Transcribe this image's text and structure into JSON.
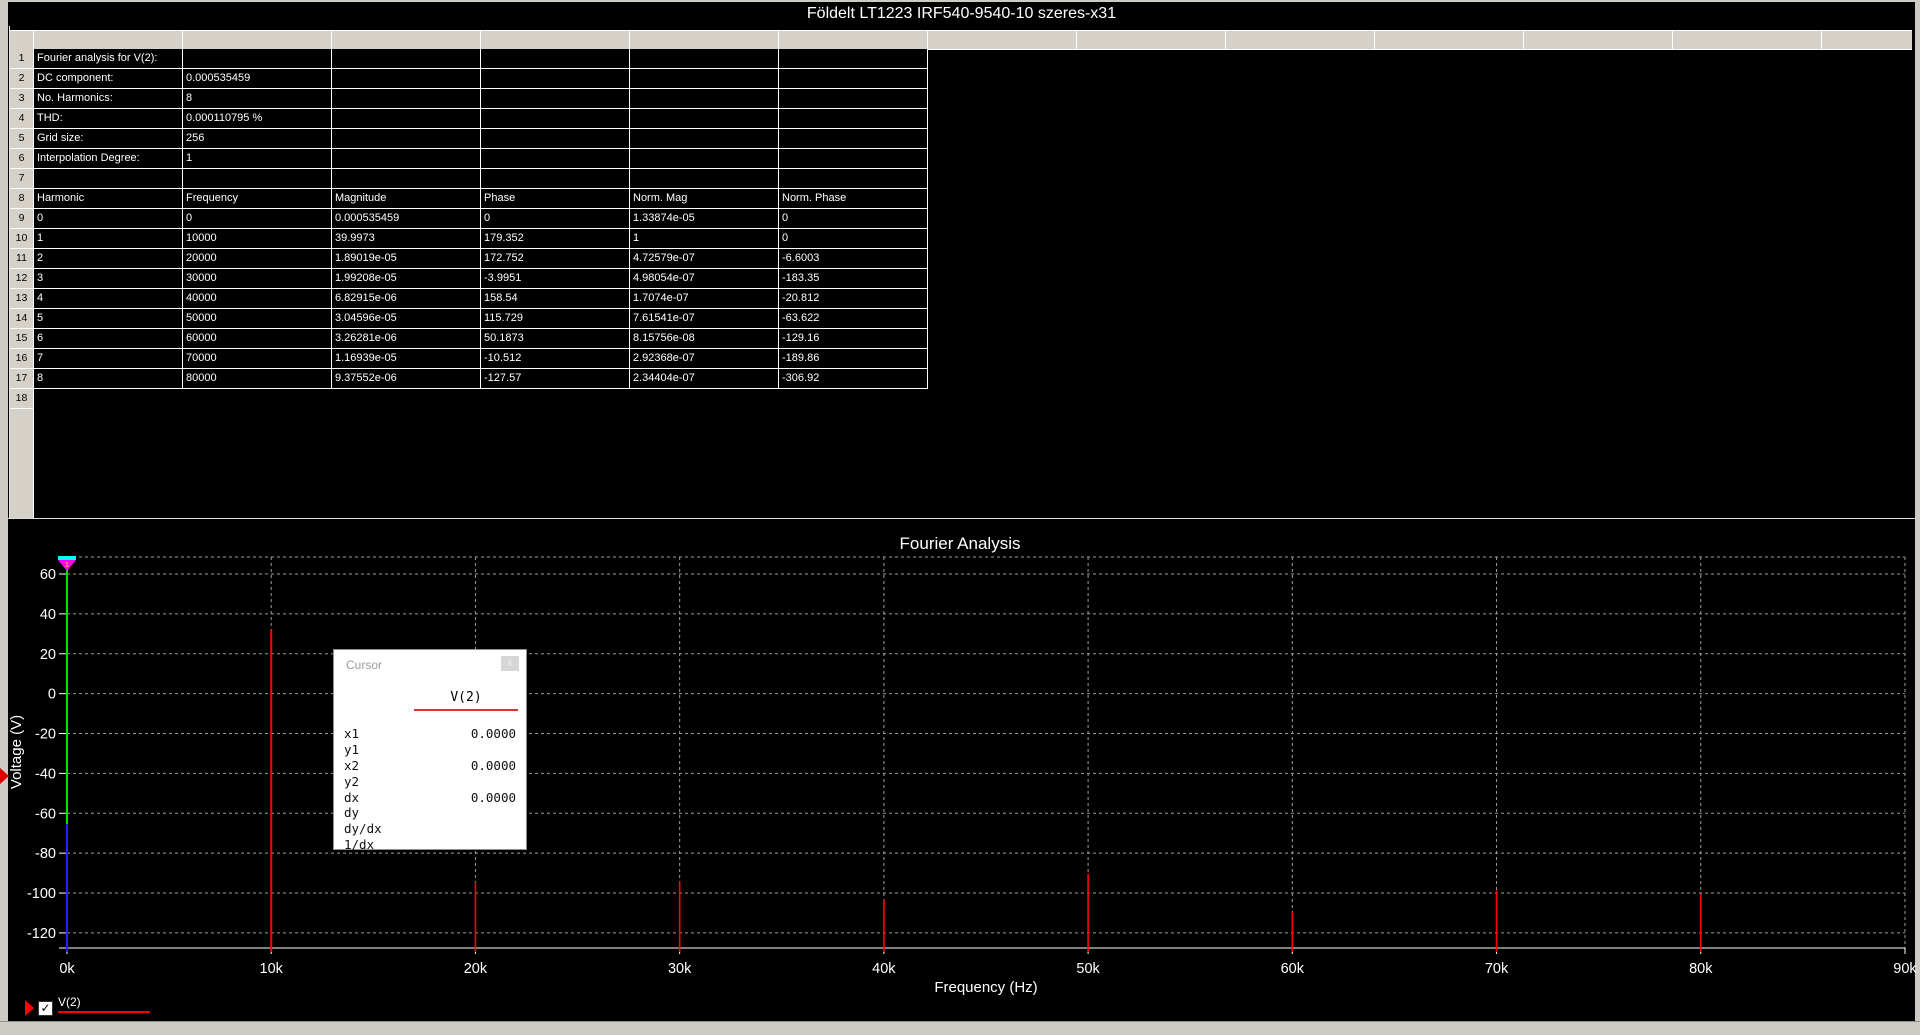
{
  "window": {
    "title": "Földelt LT1223 IRF540-9540-10 szeres-x31"
  },
  "spreadsheet": {
    "row_numbers": [
      "1",
      "2",
      "3",
      "4",
      "5",
      "6",
      "7",
      "8",
      "9",
      "10",
      "11",
      "12",
      "13",
      "14",
      "15",
      "16",
      "17",
      "18"
    ],
    "rows": [
      [
        "Fourier analysis for V(2):",
        "",
        "",
        "",
        "",
        ""
      ],
      [
        "DC component:",
        "0.000535459",
        "",
        "",
        "",
        ""
      ],
      [
        "No. Harmonics:",
        "8",
        "",
        "",
        "",
        ""
      ],
      [
        "THD:",
        "0.000110795 %",
        "",
        "",
        "",
        ""
      ],
      [
        "Grid size:",
        "256",
        "",
        "",
        "",
        ""
      ],
      [
        "Interpolation Degree:",
        "1",
        "",
        "",
        "",
        ""
      ],
      [
        "",
        "",
        "",
        "",
        "",
        ""
      ],
      [
        "Harmonic",
        "Frequency",
        "Magnitude",
        "Phase",
        "Norm. Mag",
        "Norm. Phase"
      ],
      [
        "0",
        "0",
        "0.000535459",
        "0",
        "1.33874e-05",
        "0"
      ],
      [
        "1",
        "10000",
        "39.9973",
        "179.352",
        "1",
        "0"
      ],
      [
        "2",
        "20000",
        "1.89019e-05",
        "172.752",
        "4.72579e-07",
        "-6.6003"
      ],
      [
        "3",
        "30000",
        "1.99208e-05",
        "-3.9951",
        "4.98054e-07",
        "-183.35"
      ],
      [
        "4",
        "40000",
        "6.82915e-06",
        "158.54",
        "1.7074e-07",
        "-20.812"
      ],
      [
        "5",
        "50000",
        "3.04596e-05",
        "115.729",
        "7.61541e-07",
        "-63.622"
      ],
      [
        "6",
        "60000",
        "3.26281e-06",
        "50.1873",
        "8.15756e-08",
        "-129.16"
      ],
      [
        "7",
        "70000",
        "1.16939e-05",
        "-10.512",
        "2.92368e-07",
        "-189.86"
      ],
      [
        "8",
        "80000",
        "9.37552e-06",
        "-127.57",
        "2.34404e-07",
        "-306.92"
      ],
      [
        "",
        "",
        "",
        "",
        "",
        ""
      ]
    ]
  },
  "chart_data": {
    "type": "bar",
    "title": "Fourier Analysis",
    "xlabel": "Frequency (Hz)",
    "ylabel": "Voltage (V)",
    "x_tick_labels": [
      "0k",
      "10k",
      "20k",
      "30k",
      "40k",
      "50k",
      "60k",
      "70k",
      "80k",
      "90k"
    ],
    "x_tick_values": [
      0,
      10000,
      20000,
      30000,
      40000,
      50000,
      60000,
      70000,
      80000,
      90000
    ],
    "y_tick_values": [
      60,
      40,
      20,
      0,
      -20,
      -40,
      -60,
      -80,
      -100,
      -120
    ],
    "xlim": [
      0,
      90000
    ],
    "ylim": [
      -120,
      60
    ],
    "grid": "dashed",
    "legend_position": "bottom-left",
    "series": [
      {
        "name": "V(2)",
        "color": "#ff0000",
        "x": [
          0,
          10000,
          20000,
          30000,
          40000,
          50000,
          60000,
          70000,
          80000
        ],
        "magnitude_v": [
          0.000535459,
          39.9973,
          1.89019e-05,
          1.99208e-05,
          6.82915e-06,
          3.04596e-05,
          3.26281e-06,
          1.16939e-05,
          9.37552e-06
        ],
        "y_db": [
          -65.43,
          32.04,
          -94.47,
          -94.02,
          -103.31,
          -90.33,
          -109.73,
          -98.64,
          -100.56
        ]
      }
    ],
    "cursor": {
      "x": 0,
      "handle_label": "1",
      "line1_color": "#00dd00",
      "line2_color": "#2222ff"
    }
  },
  "cursor_window": {
    "title": "Cursor",
    "close_label": "x",
    "series": "V(2)",
    "rows": [
      {
        "label": "x1",
        "value": "0.0000"
      },
      {
        "label": "y1",
        "value": ""
      },
      {
        "label": "x2",
        "value": "0.0000"
      },
      {
        "label": "y2",
        "value": ""
      },
      {
        "label": "dx",
        "value": "0.0000"
      },
      {
        "label": "dy",
        "value": ""
      },
      {
        "label": "dy/dx",
        "value": ""
      },
      {
        "label": "1/dx",
        "value": ""
      }
    ]
  },
  "legend": {
    "label": "V(2)",
    "checked": true,
    "checkmark": "✓",
    "color": "#ff0000"
  },
  "colors": {
    "background": "#000000",
    "frame": "#cecbc4",
    "grid_lines": "#ffffff",
    "sheet_header": "#d5d1c9",
    "chart_gridline": "#9c9c9c",
    "spike": "#ff0000",
    "cursor_green": "#00dd00",
    "cursor_blue": "#2222ff",
    "handle_magenta": "#ff00ff",
    "handle_cyan": "#00ffff"
  }
}
